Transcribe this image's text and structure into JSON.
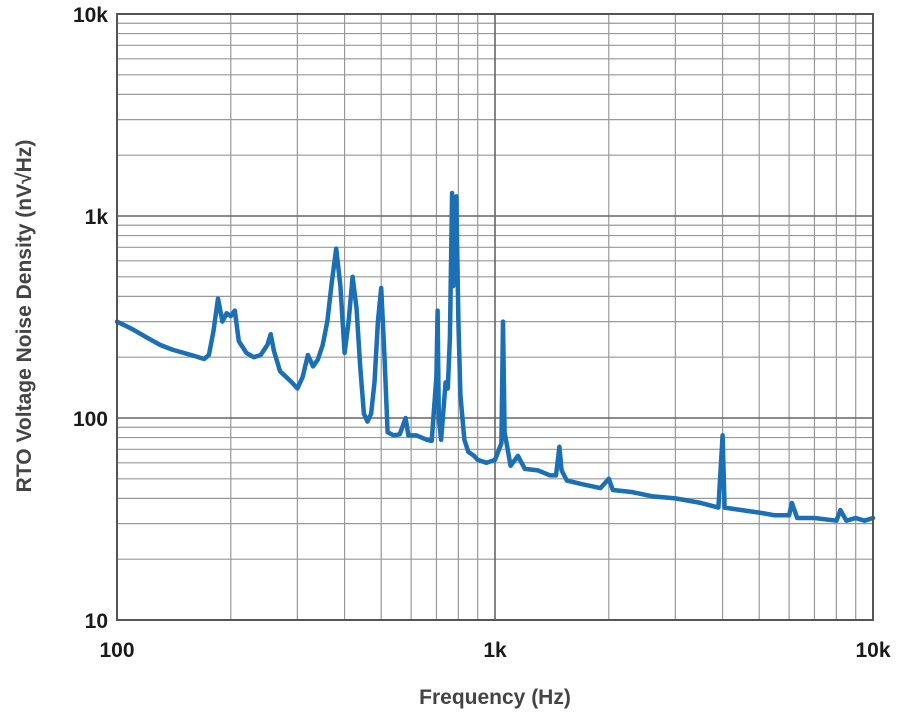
{
  "chart_data": {
    "type": "line",
    "xlabel": "Frequency (Hz)",
    "ylabel": "RTO Voltage Noise Density (nV√Hz)",
    "x_scale": "log",
    "y_scale": "log",
    "xlim": [
      100,
      10000
    ],
    "ylim": [
      10,
      10000
    ],
    "grid": true,
    "x_ticks": [
      {
        "value": 100,
        "label": "100"
      },
      {
        "value": 1000,
        "label": "1k"
      },
      {
        "value": 10000,
        "label": "10k"
      }
    ],
    "y_ticks": [
      {
        "value": 10,
        "label": "10"
      },
      {
        "value": 100,
        "label": "100"
      },
      {
        "value": 1000,
        "label": "1k"
      },
      {
        "value": 10000,
        "label": "10k"
      }
    ],
    "series": [
      {
        "color": "#1a6fb5",
        "points": [
          [
            100,
            300
          ],
          [
            110,
            275
          ],
          [
            120,
            250
          ],
          [
            130,
            230
          ],
          [
            140,
            218
          ],
          [
            150,
            210
          ],
          [
            160,
            203
          ],
          [
            170,
            196
          ],
          [
            175,
            205
          ],
          [
            180,
            270
          ],
          [
            185,
            390
          ],
          [
            190,
            300
          ],
          [
            195,
            330
          ],
          [
            200,
            320
          ],
          [
            205,
            340
          ],
          [
            210,
            240
          ],
          [
            220,
            210
          ],
          [
            230,
            200
          ],
          [
            240,
            205
          ],
          [
            250,
            230
          ],
          [
            255,
            260
          ],
          [
            260,
            215
          ],
          [
            270,
            170
          ],
          [
            280,
            160
          ],
          [
            290,
            150
          ],
          [
            300,
            140
          ],
          [
            310,
            160
          ],
          [
            320,
            205
          ],
          [
            330,
            180
          ],
          [
            340,
            195
          ],
          [
            350,
            230
          ],
          [
            360,
            300
          ],
          [
            370,
            470
          ],
          [
            380,
            690
          ],
          [
            390,
            450
          ],
          [
            400,
            210
          ],
          [
            410,
            300
          ],
          [
            420,
            500
          ],
          [
            430,
            350
          ],
          [
            440,
            180
          ],
          [
            450,
            105
          ],
          [
            460,
            96
          ],
          [
            470,
            105
          ],
          [
            480,
            150
          ],
          [
            490,
            300
          ],
          [
            500,
            440
          ],
          [
            510,
            200
          ],
          [
            520,
            85
          ],
          [
            540,
            82
          ],
          [
            560,
            83
          ],
          [
            580,
            100
          ],
          [
            590,
            82
          ],
          [
            620,
            82
          ],
          [
            640,
            80
          ],
          [
            660,
            78
          ],
          [
            680,
            77
          ],
          [
            700,
            160
          ],
          [
            705,
            340
          ],
          [
            710,
            100
          ],
          [
            720,
            78
          ],
          [
            740,
            150
          ],
          [
            750,
            140
          ],
          [
            760,
            250
          ],
          [
            770,
            1300
          ],
          [
            775,
            450
          ],
          [
            780,
            700
          ],
          [
            790,
            1250
          ],
          [
            800,
            300
          ],
          [
            810,
            130
          ],
          [
            820,
            100
          ],
          [
            830,
            78
          ],
          [
            850,
            68
          ],
          [
            880,
            65
          ],
          [
            900,
            62
          ],
          [
            950,
            60
          ],
          [
            1000,
            62
          ],
          [
            1040,
            75
          ],
          [
            1050,
            300
          ],
          [
            1060,
            85
          ],
          [
            1100,
            58
          ],
          [
            1150,
            65
          ],
          [
            1200,
            56
          ],
          [
            1300,
            55
          ],
          [
            1400,
            52
          ],
          [
            1450,
            52
          ],
          [
            1480,
            72
          ],
          [
            1500,
            55
          ],
          [
            1550,
            49
          ],
          [
            1700,
            47
          ],
          [
            1900,
            45
          ],
          [
            2000,
            50
          ],
          [
            2050,
            44
          ],
          [
            2300,
            43
          ],
          [
            2600,
            41
          ],
          [
            3000,
            40
          ],
          [
            3500,
            38
          ],
          [
            3900,
            36
          ],
          [
            4000,
            82
          ],
          [
            4050,
            36
          ],
          [
            4500,
            35
          ],
          [
            5000,
            34
          ],
          [
            5500,
            33
          ],
          [
            6000,
            33
          ],
          [
            6100,
            38
          ],
          [
            6300,
            32
          ],
          [
            7000,
            32
          ],
          [
            8000,
            31
          ],
          [
            8200,
            35
          ],
          [
            8500,
            31
          ],
          [
            9000,
            32
          ],
          [
            9500,
            31
          ],
          [
            10000,
            32
          ]
        ]
      }
    ]
  }
}
